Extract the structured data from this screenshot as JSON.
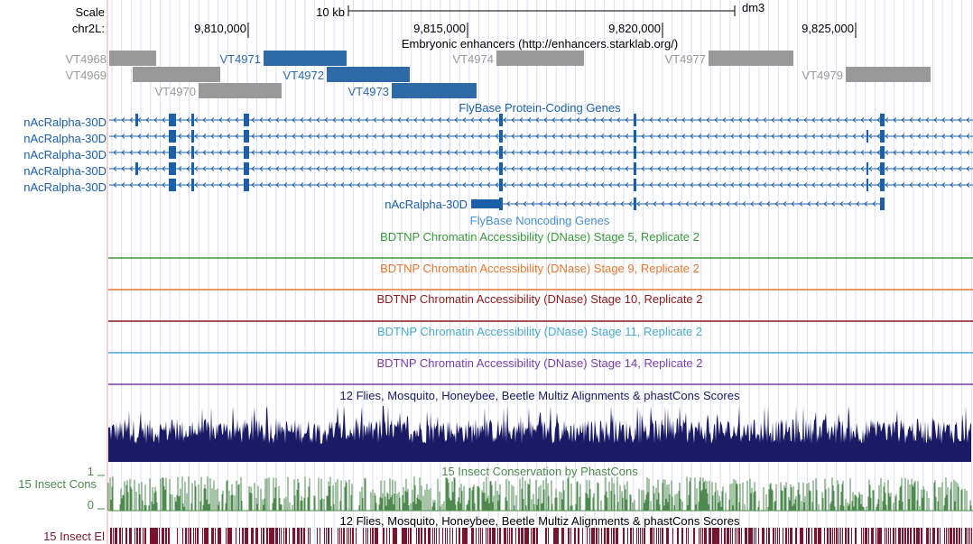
{
  "header": {
    "scale_label": "Scale",
    "scale_bar_text": "10 kb",
    "assembly": "dm3",
    "chrom_label": "chr2L:",
    "positions": [
      "9,810,000",
      "9,815,000",
      "9,820,000",
      "9,825,000"
    ]
  },
  "enhancers": {
    "title": "Embryonic enhancers (http://enhancers.starklab.org/)",
    "items": [
      {
        "name": "VT4968",
        "highlight": false
      },
      {
        "name": "VT4969",
        "highlight": false
      },
      {
        "name": "VT4970",
        "highlight": false
      },
      {
        "name": "VT4971",
        "highlight": true
      },
      {
        "name": "VT4972",
        "highlight": true
      },
      {
        "name": "VT4973",
        "highlight": true
      },
      {
        "name": "VT4974",
        "highlight": false
      },
      {
        "name": "VT4977",
        "highlight": false
      },
      {
        "name": "VT4979",
        "highlight": false
      }
    ]
  },
  "genes": {
    "title": "FlyBase Protein-Coding Genes",
    "transcripts": [
      "nAcRalpha-30D",
      "nAcRalpha-30D",
      "nAcRalpha-30D",
      "nAcRalpha-30D",
      "nAcRalpha-30D"
    ],
    "short_transcript": "nAcRalpha-30D"
  },
  "noncoding": {
    "title": "FlyBase Noncoding Genes"
  },
  "dnase": [
    {
      "title": "BDTNP Chromatin Accessibility (DNase) Stage 5, Replicate 2",
      "color": "#3a9a3a"
    },
    {
      "title": "BDTNP Chromatin Accessibility (DNase) Stage 9, Replicate 2",
      "color": "#e8772e"
    },
    {
      "title": "BDTNP Chromatin Accessibility (DNase) Stage 10, Replicate 2",
      "color": "#8b1a1a"
    },
    {
      "title": "BDTNP Chromatin Accessibility (DNase) Stage 11, Replicate 2",
      "color": "#4aaad0"
    },
    {
      "title": "BDTNP Chromatin Accessibility (DNase) Stage 14, Replicate 2",
      "color": "#7a3fa8"
    }
  ],
  "multiz": {
    "title": "12 Flies, Mosquito, Honeybee, Beetle Multiz Alignments & phastCons Scores",
    "color": "#1a1a66"
  },
  "phastcons": {
    "title": "15 Insect Conservation by PhastCons",
    "left_label": "15 Insect Cons",
    "max_label": "1",
    "min_label": "0",
    "color": "#4e8a4e"
  },
  "elements": {
    "title": "12 Flies, Mosquito, Honeybee, Beetle Multiz Alignments & phastCons Scores",
    "left_label": "15 Insect El",
    "color": "#7a1530"
  },
  "colors": {
    "gene_blue": "#1a5fa8",
    "enhancer_gray": "#999999",
    "enhancer_blue": "#2e6aa6",
    "grid": "#d6d6f5",
    "left_rule": "#f0a0a0"
  }
}
